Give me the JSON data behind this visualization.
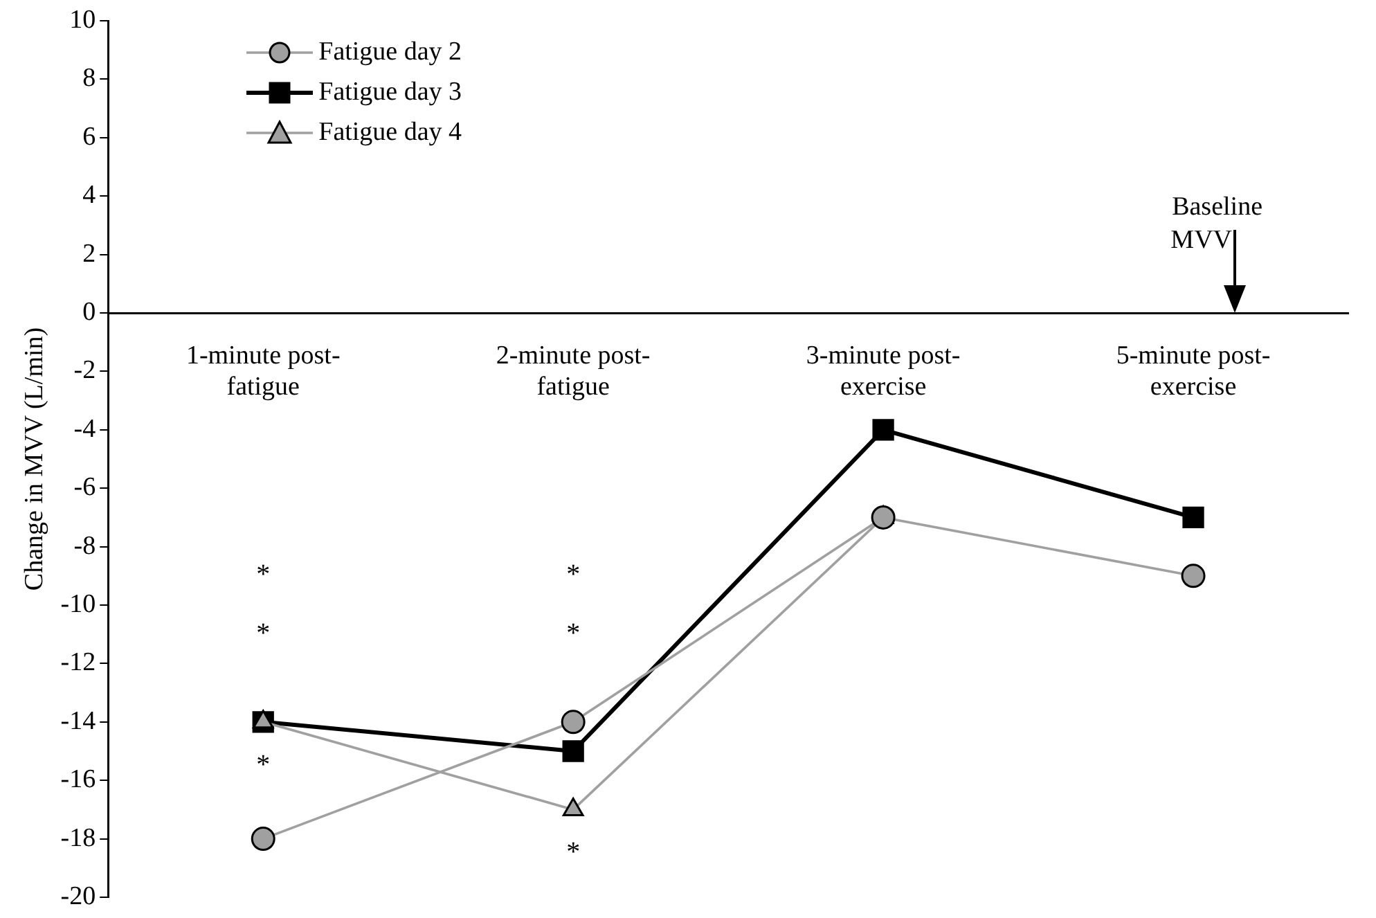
{
  "chart_data": {
    "type": "line",
    "ylabel": "Change in MVV (L/min)",
    "categories": [
      "1-minute post-fatigue",
      "2-minute post-fatigue",
      "3-minute post-exercise",
      "5-minute post-exercise"
    ],
    "series": [
      {
        "name": "Fatigue day 2",
        "color": "#a0a0a0",
        "marker": "circle",
        "values": [
          -18,
          -14,
          -7,
          -9
        ]
      },
      {
        "name": "Fatigue day 3",
        "color": "#000000",
        "marker": "square",
        "values": [
          -14,
          -15,
          -4,
          -7
        ]
      },
      {
        "name": "Fatigue day 4",
        "color": "#a0a0a0",
        "marker": "triangle",
        "values": [
          -14,
          -17,
          -7,
          null
        ]
      }
    ],
    "ylim": [
      -20,
      10
    ],
    "yticks": [
      -20,
      -18,
      -16,
      -14,
      -12,
      -10,
      -8,
      -6,
      -4,
      -2,
      0,
      2,
      4,
      6,
      8,
      10
    ],
    "grid": false,
    "legend": "top left",
    "annotations": [
      "*",
      "*",
      "*",
      "*",
      "*",
      "*",
      "Baseline MVV"
    ]
  }
}
